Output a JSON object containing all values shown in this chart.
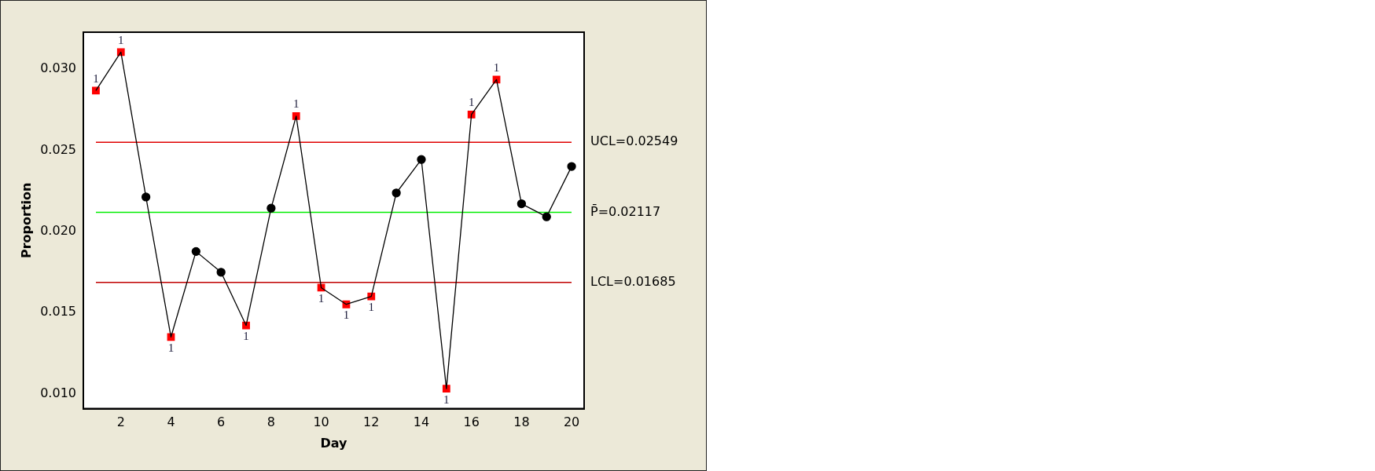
{
  "chart_data": {
    "type": "line",
    "xlabel": "Day",
    "ylabel": "Proportion",
    "x": [
      1,
      2,
      3,
      4,
      5,
      6,
      7,
      8,
      9,
      10,
      11,
      12,
      13,
      14,
      15,
      16,
      17,
      18,
      19,
      20
    ],
    "series": [
      {
        "color": "#000000",
        "marker": "none",
        "values": [
          0.02868,
          0.03105,
          0.02212,
          0.01349,
          0.01876,
          0.01748,
          0.0142,
          0.02143,
          0.02711,
          0.01653,
          0.0155,
          0.01599,
          0.02237,
          0.02443,
          0.0103,
          0.0272,
          0.02936,
          0.0217,
          0.0209,
          0.024
        ]
      },
      {
        "type": "scatter",
        "color": "#000000",
        "marker": "circle",
        "x": [
          3,
          5,
          6,
          8,
          13,
          14,
          18,
          19,
          20
        ],
        "values": [
          0.02212,
          0.01876,
          0.01748,
          0.02143,
          0.02237,
          0.02443,
          0.0217,
          0.0209,
          0.024
        ]
      },
      {
        "type": "scatter",
        "color": "#ff0000",
        "marker": "square",
        "x": [
          1,
          2,
          4,
          7,
          9,
          10,
          11,
          12,
          15,
          16,
          17
        ],
        "values": [
          0.02868,
          0.03105,
          0.01349,
          0.0142,
          0.02711,
          0.01653,
          0.0155,
          0.01599,
          0.0103,
          0.0272,
          0.02936
        ]
      }
    ],
    "xlim": [
      0.5,
      20.5
    ],
    "xticks": [
      2,
      4,
      6,
      8,
      10,
      12,
      14,
      16,
      18,
      20
    ],
    "ylim": [
      0.00907,
      0.03228
    ],
    "yticks": [
      {
        "value": 0.01,
        "label": "0.010"
      },
      {
        "value": 0.015,
        "label": "0.015"
      },
      {
        "value": 0.02,
        "label": "0.020"
      },
      {
        "value": 0.025,
        "label": "0.025"
      },
      {
        "value": 0.03,
        "label": "0.030"
      }
    ],
    "ref_lines": [
      {
        "axis": "y",
        "value": 0.02549,
        "label": "UCL=0.02549",
        "color": "#e00000"
      },
      {
        "axis": "y",
        "value": 0.02117,
        "label": "P̄=0.02117",
        "color": "#00ee00"
      },
      {
        "axis": "y",
        "value": 0.01685,
        "label": "LCL=0.01685",
        "color": "#c00000"
      }
    ],
    "annotations": [
      {
        "text": "1",
        "x": 1,
        "y": 0.02868
      },
      {
        "text": "1",
        "x": 2,
        "y": 0.03105
      },
      {
        "text": "1",
        "x": 4,
        "y": 0.01349
      },
      {
        "text": "1",
        "x": 7,
        "y": 0.0142
      },
      {
        "text": "1",
        "x": 9,
        "y": 0.02711
      },
      {
        "text": "1",
        "x": 10,
        "y": 0.01653
      },
      {
        "text": "1",
        "x": 11,
        "y": 0.0155
      },
      {
        "text": "1",
        "x": 12,
        "y": 0.01599
      },
      {
        "text": "1",
        "x": 15,
        "y": 0.0103
      },
      {
        "text": "1",
        "x": 16,
        "y": 0.0272
      },
      {
        "text": "1",
        "x": 17,
        "y": 0.02936
      }
    ],
    "grid": false,
    "legend": false
  }
}
